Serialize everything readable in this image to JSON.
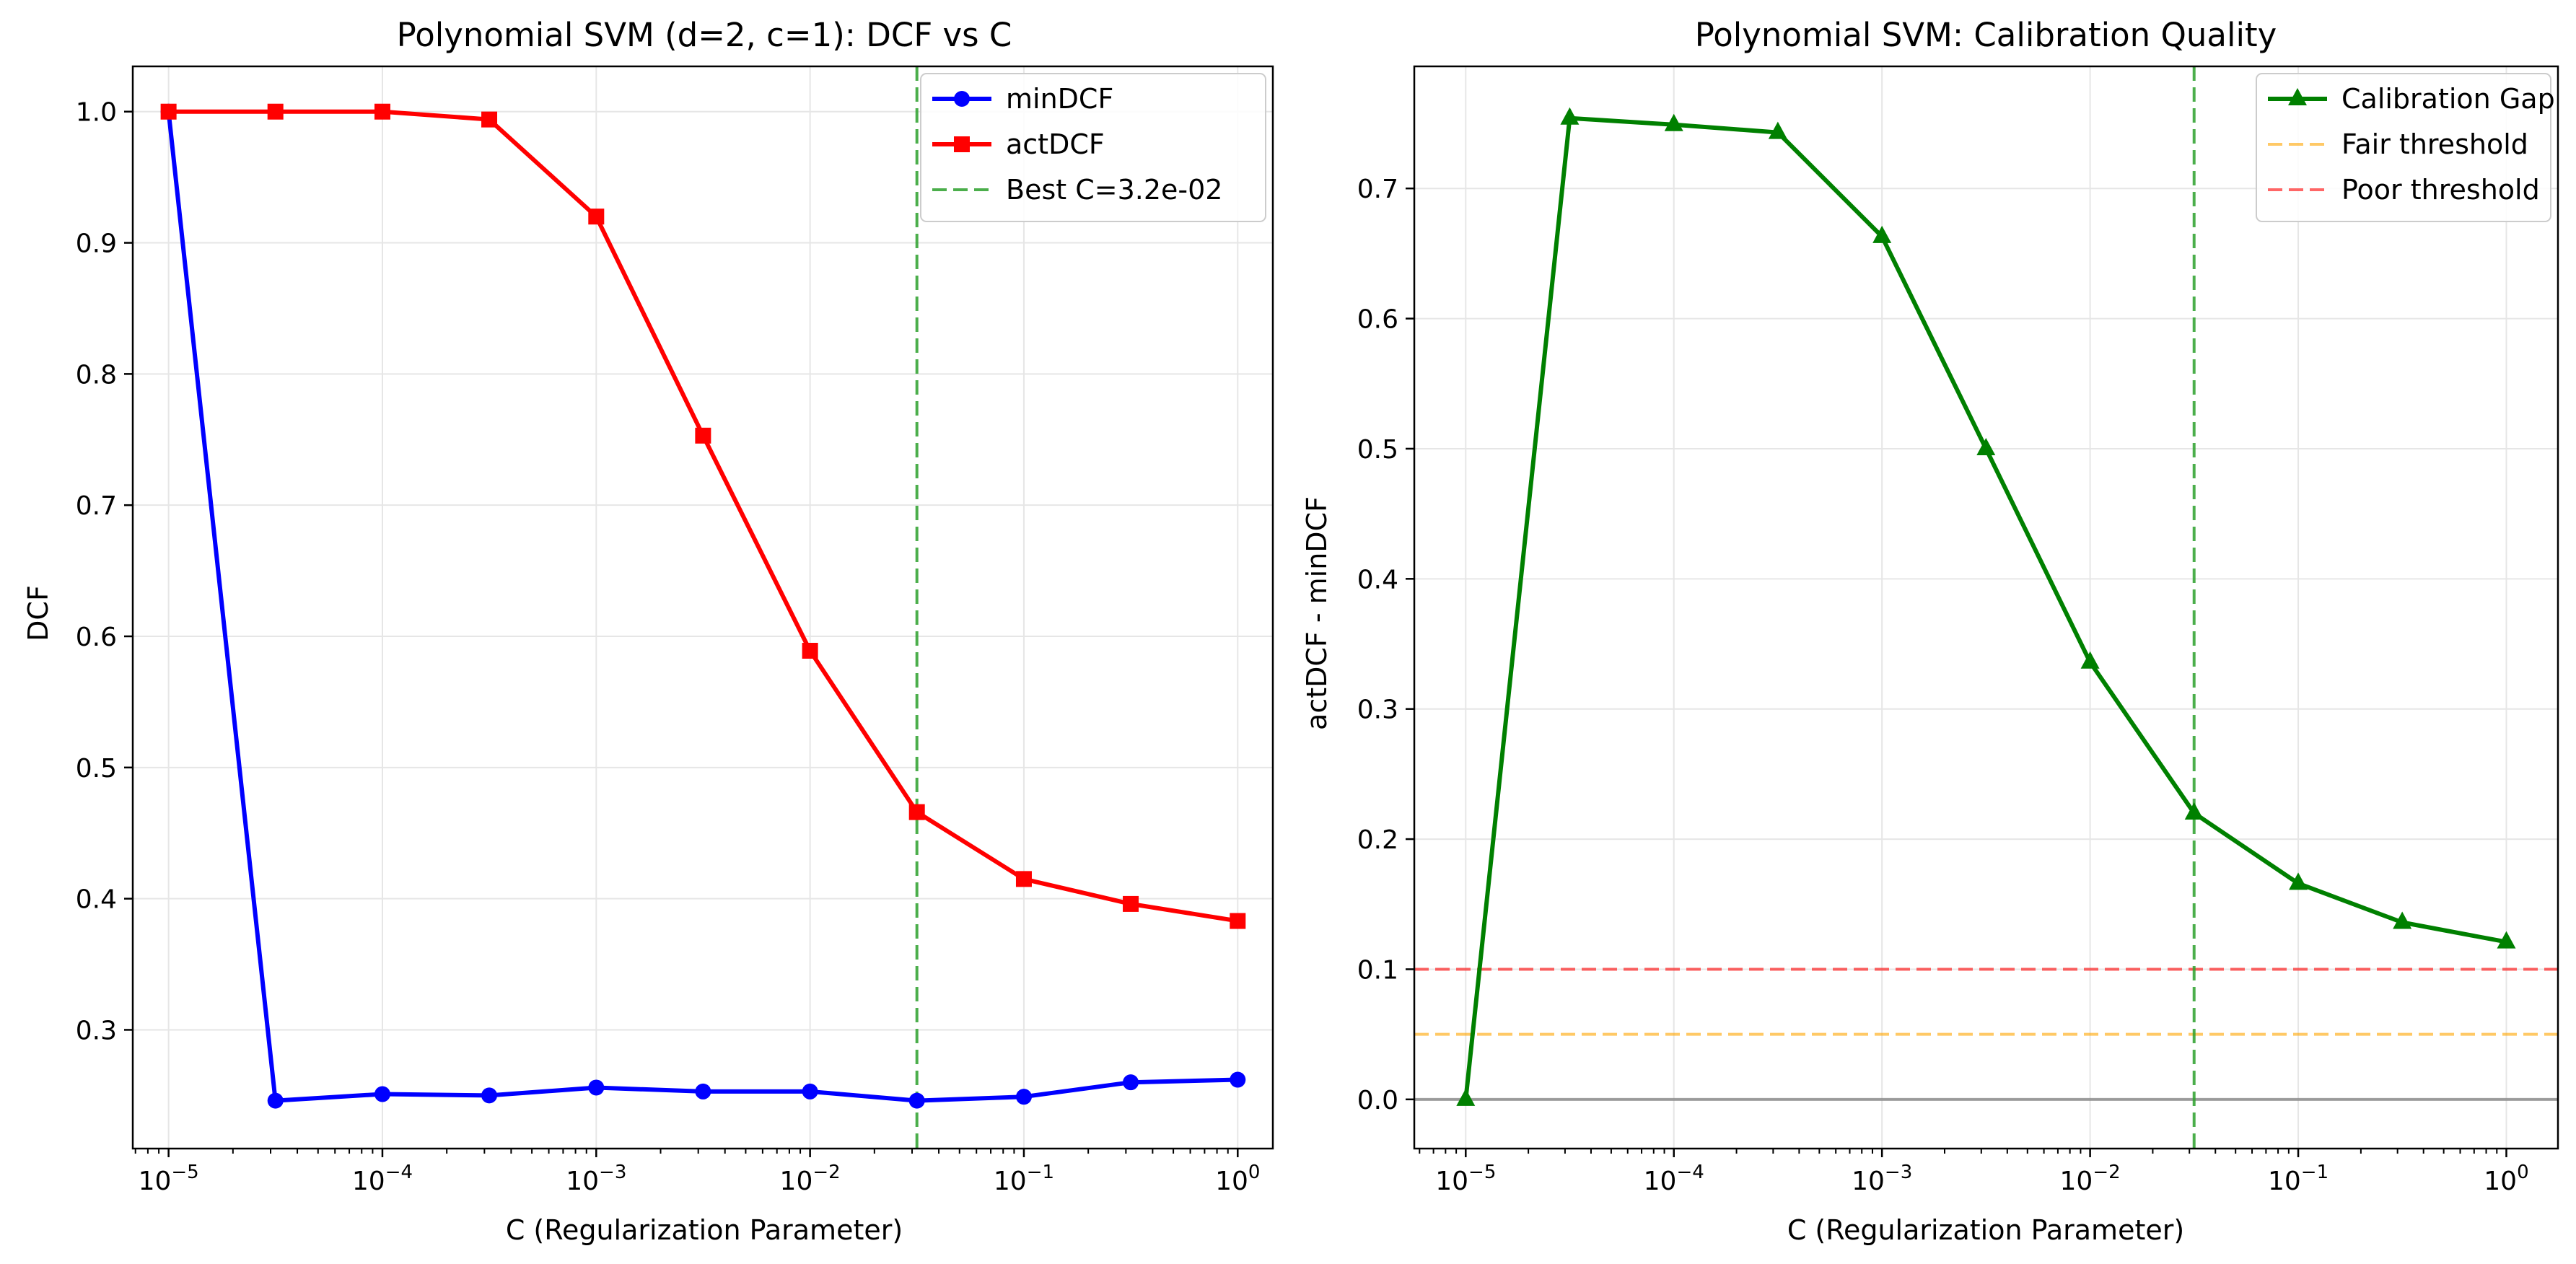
{
  "chart_data": [
    {
      "type": "line",
      "title": "Polynomial SVM (d=2, c=1): DCF vs C",
      "xlabel": "C (Regularization Parameter)",
      "ylabel": "DCF",
      "xscale": "log",
      "xlim": [
        6.8e-06,
        1.46
      ],
      "ylim": [
        0.2095,
        1.0345
      ],
      "x": [
        1e-05,
        3.16e-05,
        0.0001,
        0.000316,
        0.001,
        0.00316,
        0.01,
        0.0316,
        0.1,
        0.316,
        1.0
      ],
      "x_ticks": [
        1e-05,
        0.0001,
        0.001,
        0.01,
        0.1,
        1.0
      ],
      "x_tick_labels": [
        {
          "base": "10",
          "exp": "−5"
        },
        {
          "base": "10",
          "exp": "−4"
        },
        {
          "base": "10",
          "exp": "−3"
        },
        {
          "base": "10",
          "exp": "−2"
        },
        {
          "base": "10",
          "exp": "−1"
        },
        {
          "base": "10",
          "exp": "0"
        }
      ],
      "y_ticks": [
        0.3,
        0.4,
        0.5,
        0.6,
        0.7,
        0.8,
        0.9,
        1.0
      ],
      "y_tick_labels": [
        "0.3",
        "0.4",
        "0.5",
        "0.6",
        "0.7",
        "0.8",
        "0.9",
        "1.0"
      ],
      "grid": true,
      "legend_position": "top-right",
      "series": [
        {
          "name": "minDCF",
          "color": "#0000ff",
          "marker": "circle",
          "values": [
            1.0,
            0.246,
            0.251,
            0.25,
            0.256,
            0.253,
            0.253,
            0.246,
            0.249,
            0.26,
            0.262
          ]
        },
        {
          "name": "actDCF",
          "color": "#ff0000",
          "marker": "square",
          "values": [
            1.0,
            1.0,
            1.0,
            0.994,
            0.92,
            0.753,
            0.589,
            0.466,
            0.415,
            0.396,
            0.383
          ]
        }
      ],
      "vlines": [
        {
          "x": 0.0316,
          "color": "#2ca02c",
          "style": "dashed",
          "label": "Best C=3.2e-02"
        }
      ]
    },
    {
      "type": "line",
      "title": "Polynomial SVM: Calibration Quality",
      "xlabel": "C (Regularization Parameter)",
      "ylabel": "actDCF - minDCF",
      "xscale": "log",
      "xlim": [
        5.66e-06,
        1.77
      ],
      "ylim": [
        -0.0378,
        0.7938
      ],
      "x": [
        1e-05,
        3.16e-05,
        0.0001,
        0.000316,
        0.001,
        0.00316,
        0.01,
        0.0316,
        0.1,
        0.316,
        1.0
      ],
      "x_ticks": [
        1e-05,
        0.0001,
        0.001,
        0.01,
        0.1,
        1.0
      ],
      "x_tick_labels": [
        {
          "base": "10",
          "exp": "−5"
        },
        {
          "base": "10",
          "exp": "−4"
        },
        {
          "base": "10",
          "exp": "−3"
        },
        {
          "base": "10",
          "exp": "−2"
        },
        {
          "base": "10",
          "exp": "−1"
        },
        {
          "base": "10",
          "exp": "0"
        }
      ],
      "y_ticks": [
        0.0,
        0.1,
        0.2,
        0.3,
        0.4,
        0.5,
        0.6,
        0.7
      ],
      "y_tick_labels": [
        "0.0",
        "0.1",
        "0.2",
        "0.3",
        "0.4",
        "0.5",
        "0.6",
        "0.7"
      ],
      "grid": true,
      "legend_position": "top-right",
      "series": [
        {
          "name": "Calibration Gap",
          "color": "#008000",
          "marker": "triangle",
          "values": [
            0.0,
            0.754,
            0.749,
            0.743,
            0.663,
            0.5,
            0.336,
            0.22,
            0.166,
            0.136,
            0.121
          ]
        }
      ],
      "hlines": [
        {
          "y": 0.05,
          "color": "#ffa500",
          "style": "dashed",
          "label": "Fair threshold"
        },
        {
          "y": 0.1,
          "color": "#ff0000",
          "style": "dashed",
          "label": "Poor threshold"
        },
        {
          "y": 0.0,
          "color": "#808080",
          "style": "solid"
        }
      ],
      "vlines": [
        {
          "x": 0.0316,
          "color": "#2ca02c",
          "style": "dashed"
        }
      ]
    }
  ]
}
